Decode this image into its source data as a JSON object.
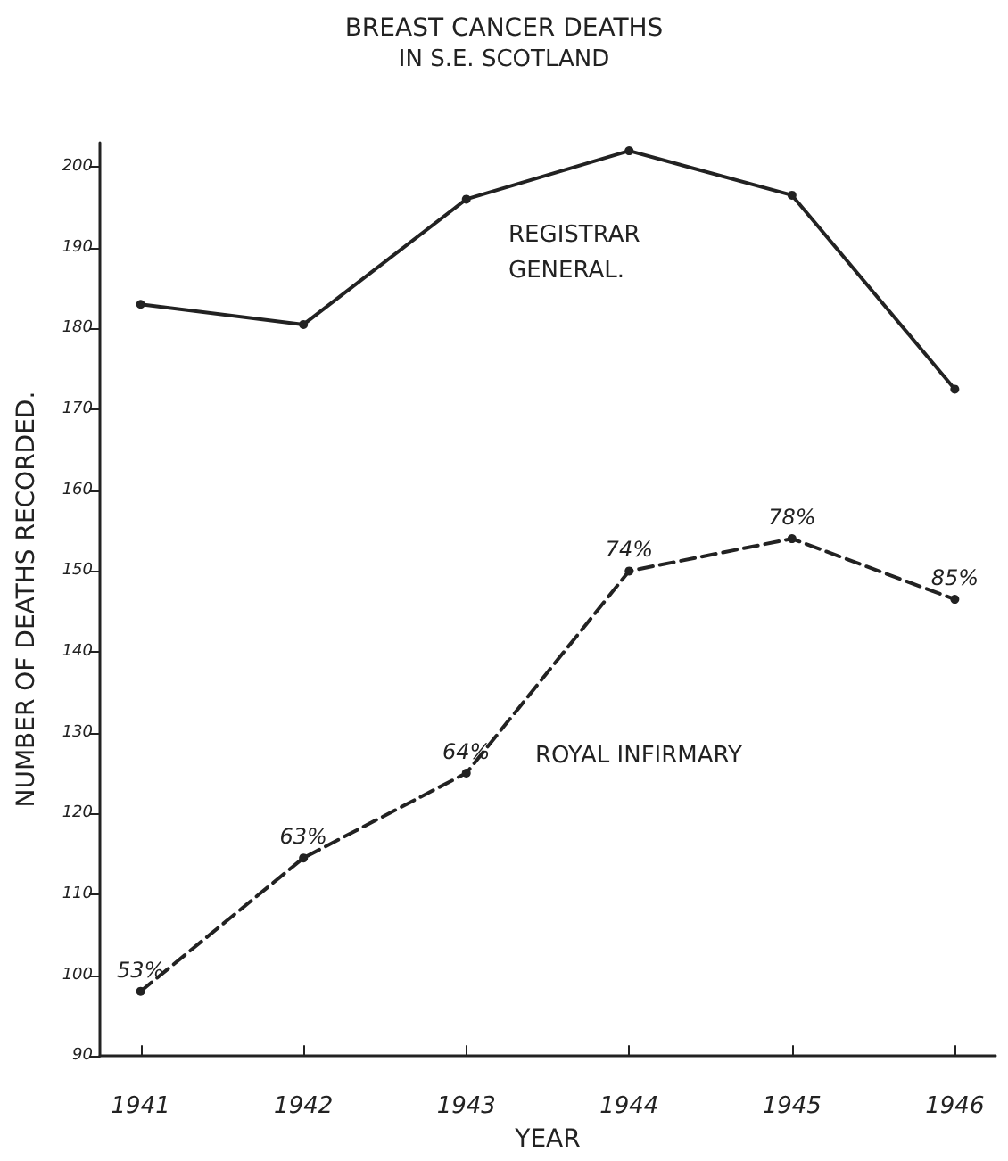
{
  "chart_data": {
    "type": "line",
    "title": "BREAST CANCER DEATHS",
    "subtitle": "IN S.E. SCOTLAND",
    "xlabel": "YEAR",
    "ylabel": "NUMBER OF DEATHS RECORDED.",
    "x": [
      1941,
      1942,
      1943,
      1944,
      1945,
      1946
    ],
    "series": [
      {
        "name": "REGISTRAR GENERAL.",
        "color": "#222222",
        "values": [
          183,
          180.5,
          196,
          202,
          196.5,
          172.5
        ],
        "line_style": "solid"
      },
      {
        "name": "ROYAL INFIRMARY",
        "color": "#222222",
        "values": [
          98,
          114.5,
          125,
          150,
          154,
          146.5
        ],
        "line_style": "dashed"
      }
    ],
    "annotations": [
      {
        "text": "53%",
        "x": 1941,
        "y": 98
      },
      {
        "text": "63%",
        "x": 1942,
        "y": 114.5
      },
      {
        "text": "64%",
        "x": 1943,
        "y": 125
      },
      {
        "text": "74%",
        "x": 1944,
        "y": 150
      },
      {
        "text": "78%",
        "x": 1945,
        "y": 154
      },
      {
        "text": "85%",
        "x": 1946,
        "y": 146.5
      }
    ],
    "xlim": [
      1940.75,
      1946.25
    ],
    "xticks": [
      1941,
      1942,
      1943,
      1944,
      1945,
      1946
    ],
    "ylim": [
      90,
      203
    ],
    "yticks": [
      90,
      100,
      110,
      120,
      130,
      140,
      150,
      160,
      170,
      180,
      190,
      200
    ],
    "grid": false,
    "legend": false,
    "marker": "circle"
  }
}
